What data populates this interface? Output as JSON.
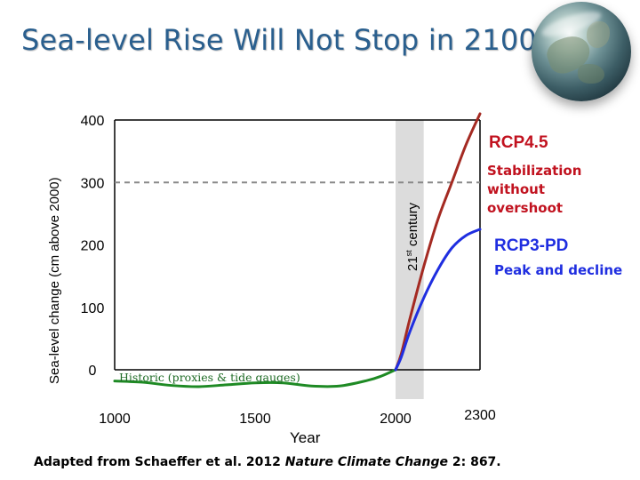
{
  "title": "Sea-level Rise Will Not Stop in 2100",
  "credit": {
    "prefix": "Adapted from Schaeffer et al. 2012 ",
    "journal": "Nature Climate Change",
    "suffix": " 2: 867."
  },
  "chart_data": {
    "type": "line",
    "title": "Sea-level Rise Will Not Stop in 2100",
    "xlabel": "Year",
    "ylabel": "Sea-level change (cm above 2000)",
    "xlim": [
      1000,
      2300
    ],
    "ylim": [
      0,
      400
    ],
    "x_ticks": [
      "1000",
      "1500",
      "2000",
      "2300"
    ],
    "y_ticks": [
      "0",
      "100",
      "200",
      "300",
      "400"
    ],
    "grid": false,
    "reference_line": {
      "y": 300,
      "style": "dashed",
      "color": "#888888"
    },
    "shaded_band": {
      "x_from": 2000,
      "x_to": 2100,
      "label": "21",
      "label_sup": "st",
      "label_rest": " century"
    },
    "series": [
      {
        "name": "Historic (proxies & tide gauges)",
        "color": "#1e8a24",
        "x": [
          1000,
          1100,
          1200,
          1300,
          1400,
          1500,
          1600,
          1700,
          1800,
          1900,
          1950,
          2000
        ],
        "y": [
          -18,
          -20,
          -25,
          -27,
          -24,
          -21,
          -21,
          -26,
          -26,
          -17,
          -10,
          0
        ]
      },
      {
        "name": "RCP4.5",
        "subtitle": "Stabilization without overshoot",
        "color": "#a42a22",
        "x": [
          2000,
          2020,
          2050,
          2100,
          2150,
          2200,
          2250,
          2300
        ],
        "y": [
          0,
          25,
          80,
          165,
          240,
          300,
          360,
          410
        ]
      },
      {
        "name": "RCP3-PD",
        "subtitle": "Peak and decline",
        "color": "#1f2ee0",
        "x": [
          2000,
          2020,
          2050,
          2100,
          2150,
          2200,
          2250,
          2300
        ],
        "y": [
          0,
          20,
          60,
          115,
          160,
          195,
          215,
          225
        ]
      }
    ],
    "legend": "none"
  }
}
